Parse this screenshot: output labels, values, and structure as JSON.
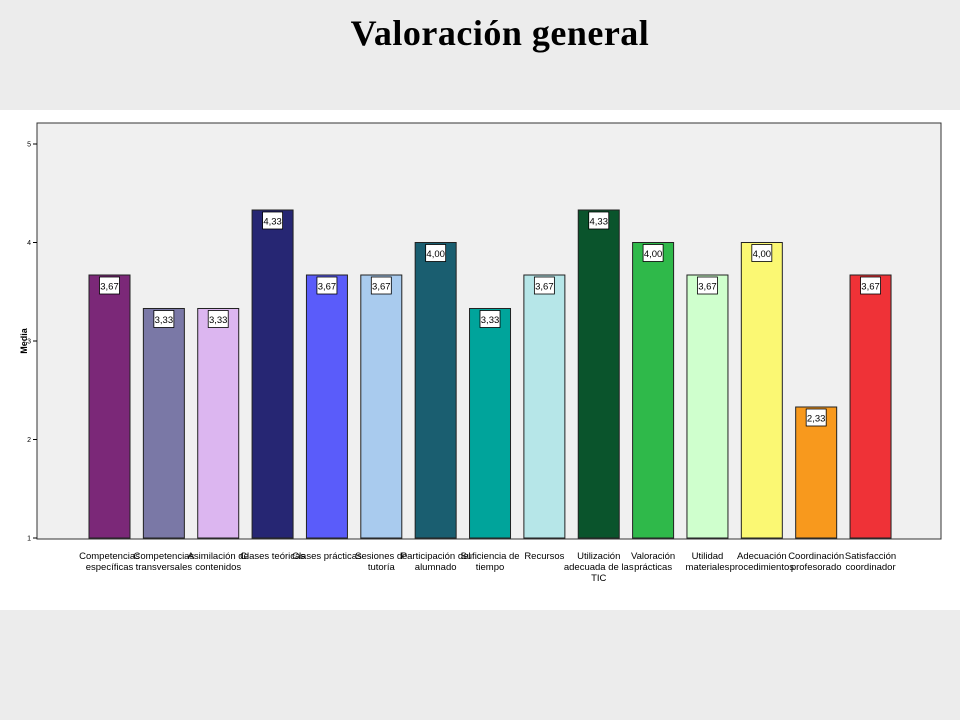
{
  "page": {
    "title": "Valoración general"
  },
  "chart_data": {
    "type": "bar",
    "title": "",
    "xlabel": "",
    "ylabel": "Media",
    "ylim": [
      1,
      5
    ],
    "yticks": [
      "1",
      "2",
      "3",
      "4",
      "5"
    ],
    "grid": false,
    "legend": "none",
    "categories": [
      [
        "Competencias",
        "específicas"
      ],
      [
        "Competencias",
        "transversales"
      ],
      [
        "Asimilación de",
        "contenidos"
      ],
      [
        "Clases teóricas"
      ],
      [
        "Clases prácticas"
      ],
      [
        "Sesiones de",
        "tutoría"
      ],
      [
        "Participación del",
        "alumnado"
      ],
      [
        "Suficiencia de",
        "tiempo"
      ],
      [
        "Recursos"
      ],
      [
        "Utilización",
        "adecuada de las",
        "TIC"
      ],
      [
        "Valoración",
        "prácticas"
      ],
      [
        "Utilidad",
        "materiales"
      ],
      [
        "Adecuación",
        "procedimientos"
      ],
      [
        "Coordinación",
        "profesorado"
      ],
      [
        "Satisfacción",
        "coordinador"
      ]
    ],
    "values": [
      3.67,
      3.33,
      3.33,
      4.33,
      3.67,
      3.67,
      4.0,
      3.33,
      3.67,
      4.33,
      4.0,
      3.67,
      4.0,
      2.33,
      3.67
    ],
    "data_labels": [
      "3,67",
      "3,33",
      "3,33",
      "4,33",
      "3,67",
      "3,67",
      "4,00",
      "3,33",
      "3,67",
      "4,33",
      "4,00",
      "3,67",
      "4,00",
      "2,33",
      "3,67"
    ],
    "colors": [
      "#7b2878",
      "#7a78a6",
      "#dcb6f0",
      "#262673",
      "#5a5cfa",
      "#a9cbee",
      "#1a5e70",
      "#00a49b",
      "#b6e6e8",
      "#0a542c",
      "#2fb94a",
      "#cfffcd",
      "#fbf873",
      "#f8991d",
      "#ef3237"
    ],
    "plot_background": "#f0f0f0"
  }
}
